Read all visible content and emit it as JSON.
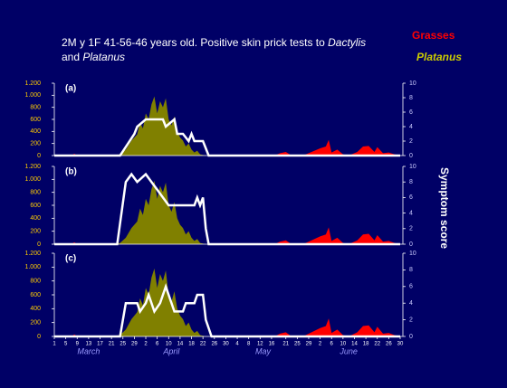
{
  "chart_data": {
    "type": "area",
    "title_parts": [
      "2M y 1F 41-56-46 years old. Positive skin prick tests to ",
      "Dactylis",
      "and ",
      "Platanus"
    ],
    "y2label": "Symptom score",
    "pollen": [
      {
        "name": "Grasses",
        "color": "#ff0000",
        "x": [
          1,
          7,
          8,
          9,
          60,
          62,
          66,
          70,
          72,
          74,
          78,
          80,
          82,
          84,
          88,
          91,
          94,
          96,
          97,
          98,
          100,
          102,
          104,
          107,
          109,
          111,
          113,
          114,
          116,
          118,
          120,
          122
        ],
        "values": [
          0,
          0,
          30,
          0,
          0,
          10,
          0,
          0,
          15,
          0,
          0,
          40,
          60,
          0,
          0,
          60,
          120,
          150,
          260,
          50,
          100,
          20,
          0,
          60,
          150,
          160,
          60,
          140,
          40,
          50,
          20,
          0
        ]
      },
      {
        "name": "Platanus",
        "color": "#808000",
        "x": [
          20,
          24,
          26,
          28,
          30,
          31,
          32,
          33,
          34,
          35,
          36,
          37,
          38,
          39,
          40,
          41,
          42,
          43,
          44,
          45,
          46,
          47,
          48,
          49,
          50,
          51,
          52,
          54
        ],
        "values": [
          0,
          20,
          100,
          250,
          350,
          550,
          450,
          700,
          600,
          850,
          980,
          700,
          900,
          800,
          950,
          600,
          500,
          650,
          400,
          300,
          250,
          150,
          200,
          100,
          50,
          80,
          20,
          0
        ]
      }
    ],
    "panels": [
      {
        "label": "(a)",
        "symptom": {
          "x": [
            1,
            24,
            29,
            30,
            33,
            39,
            40,
            43,
            44,
            46,
            48,
            49,
            50,
            53,
            55,
            122
          ],
          "values": [
            0,
            0,
            3,
            4,
            5,
            5,
            4,
            5,
            3,
            3,
            2,
            3,
            2,
            2,
            0,
            0
          ]
        }
      },
      {
        "label": "(b)",
        "symptom": {
          "x": [
            1,
            23,
            26,
            28,
            30,
            33,
            35,
            37,
            39,
            41,
            50,
            51,
            52,
            53,
            54,
            55,
            122
          ],
          "values": [
            0,
            0,
            8,
            9,
            8,
            9,
            8,
            7,
            6,
            5,
            5,
            6,
            5,
            6,
            2,
            0,
            0
          ]
        }
      },
      {
        "label": "(c)",
        "symptom": {
          "x": [
            1,
            24,
            26,
            30,
            31,
            33,
            34,
            36,
            38,
            40,
            41,
            43,
            46,
            47,
            50,
            51,
            53,
            54,
            56,
            122
          ],
          "values": [
            0,
            0,
            4,
            4,
            3,
            4,
            5,
            3,
            4,
            6,
            5,
            3,
            3,
            4,
            4,
            5,
            5,
            2,
            0,
            0
          ]
        }
      }
    ],
    "xlim": [
      1,
      122
    ],
    "xticks": [
      1,
      5,
      9,
      13,
      17,
      21,
      25,
      29,
      {
        "value": 33,
        "label": "2"
      },
      {
        "value": 37,
        "label": "6"
      },
      {
        "value": 41,
        "label": "10"
      },
      {
        "value": 45,
        "label": "14"
      },
      {
        "value": 49,
        "label": "18"
      },
      {
        "value": 53,
        "label": "22"
      },
      {
        "value": 57,
        "label": "26"
      },
      {
        "value": 61,
        "label": "30"
      },
      {
        "value": 65,
        "label": "4"
      },
      {
        "value": 69,
        "label": "8"
      },
      {
        "value": 73,
        "label": "12"
      },
      {
        "value": 77,
        "label": "16"
      },
      {
        "value": 82,
        "label": "21"
      },
      {
        "value": 86,
        "label": "25"
      },
      {
        "value": 90,
        "label": "29"
      },
      {
        "value": 94,
        "label": "2"
      },
      {
        "value": 98,
        "label": "6"
      },
      {
        "value": 102,
        "label": "10"
      },
      {
        "value": 106,
        "label": "14"
      },
      {
        "value": 110,
        "label": "18"
      },
      {
        "value": 114,
        "label": "22"
      },
      {
        "value": 118,
        "label": "26"
      },
      {
        "value": 122,
        "label": "30"
      }
    ],
    "months": [
      {
        "value": 13,
        "label": "March"
      },
      {
        "value": 42,
        "label": "April"
      },
      {
        "value": 74,
        "label": "May"
      },
      {
        "value": 104,
        "label": "June"
      }
    ],
    "ylim": [
      0,
      1200
    ],
    "yticks": [
      0,
      200,
      400,
      600,
      800,
      {
        "value": 1000,
        "label": "1.000"
      },
      {
        "value": 1200,
        "label": "1.200"
      }
    ],
    "y2lim": [
      0,
      10
    ],
    "y2ticks": [
      0,
      2,
      4,
      6,
      8,
      10
    ]
  }
}
